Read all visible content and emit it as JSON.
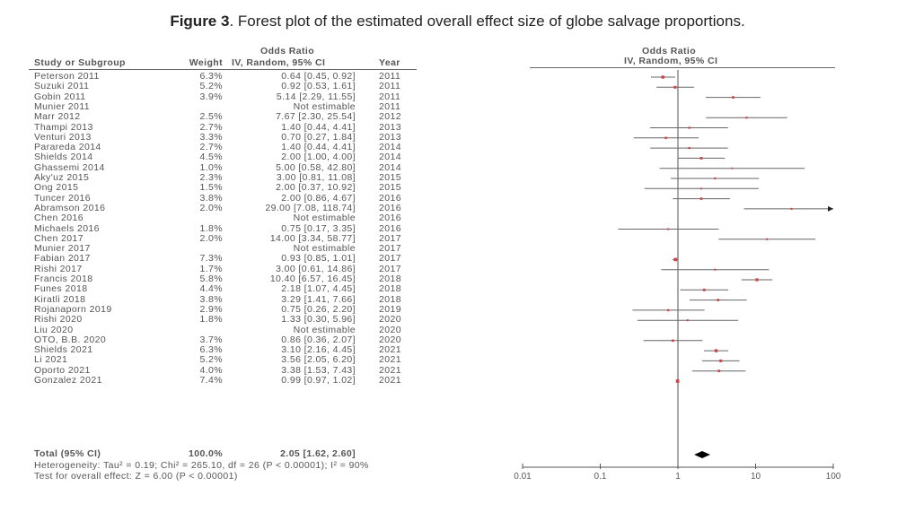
{
  "figure_label": "Figure 3",
  "figure_caption": ". Forest plot of the estimated overall effect size of globe salvage proportions.",
  "chart_data": {
    "type": "forest",
    "title": "Figure 3. Forest plot of the estimated overall effect size of globe salvage proportions.",
    "headers": {
      "study": "Study or Subgroup",
      "weight": "Weight",
      "or_top": "Odds Ratio",
      "or_sub": "IV, Random, 95% CI",
      "year": "Year",
      "plot_top": "Odds Ratio",
      "plot_sub": "IV, Random, 95% CI"
    },
    "xscale": "log",
    "xlim": [
      0.01,
      100
    ],
    "xticks": [
      "0.01",
      "0.1",
      "1",
      "10",
      "100"
    ],
    "studies": [
      {
        "name": "Peterson 2011",
        "weight": "6.3%",
        "ci": "0.64 [0.45, 0.92]",
        "year": "2011",
        "or": 0.64,
        "lo": 0.45,
        "hi": 0.92
      },
      {
        "name": "Suzuki 2011",
        "weight": "5.2%",
        "ci": "0.92 [0.53, 1.61]",
        "year": "2011",
        "or": 0.92,
        "lo": 0.53,
        "hi": 1.61
      },
      {
        "name": "Gobin 2011",
        "weight": "3.9%",
        "ci": "5.14 [2.29, 11.55]",
        "year": "2011",
        "or": 5.14,
        "lo": 2.29,
        "hi": 11.55
      },
      {
        "name": "Munier 2011",
        "weight": "",
        "ci": "Not estimable",
        "year": "2011"
      },
      {
        "name": "Marr 2012",
        "weight": "2.5%",
        "ci": "7.67 [2.30, 25.54]",
        "year": "2012",
        "or": 7.67,
        "lo": 2.3,
        "hi": 25.54
      },
      {
        "name": "Thampi 2013",
        "weight": "2.7%",
        "ci": "1.40 [0.44, 4.41]",
        "year": "2013",
        "or": 1.4,
        "lo": 0.44,
        "hi": 4.41
      },
      {
        "name": "Venturi 2013",
        "weight": "3.3%",
        "ci": "0.70 [0.27, 1.84]",
        "year": "2013",
        "or": 0.7,
        "lo": 0.27,
        "hi": 1.84
      },
      {
        "name": "Parareda 2014",
        "weight": "2.7%",
        "ci": "1.40 [0.44, 4.41]",
        "year": "2014",
        "or": 1.4,
        "lo": 0.44,
        "hi": 4.41
      },
      {
        "name": "Shields 2014",
        "weight": "4.5%",
        "ci": "2.00 [1.00, 4.00]",
        "year": "2014",
        "or": 2.0,
        "lo": 1.0,
        "hi": 4.0
      },
      {
        "name": "Ghassemi 2014",
        "weight": "1.0%",
        "ci": "5.00 [0.58, 42.80]",
        "year": "2014",
        "or": 5.0,
        "lo": 0.58,
        "hi": 42.8
      },
      {
        "name": "Aky'uz 2015",
        "weight": "2.3%",
        "ci": "3.00 [0.81, 11.08]",
        "year": "2015",
        "or": 3.0,
        "lo": 0.81,
        "hi": 11.08
      },
      {
        "name": "Ong 2015",
        "weight": "1.5%",
        "ci": "2.00 [0.37, 10.92]",
        "year": "2015",
        "or": 2.0,
        "lo": 0.37,
        "hi": 10.92
      },
      {
        "name": "Tuncer 2016",
        "weight": "3.8%",
        "ci": "2.00 [0.86, 4.67]",
        "year": "2016",
        "or": 2.0,
        "lo": 0.86,
        "hi": 4.67
      },
      {
        "name": "Abramson 2016",
        "weight": "2.0%",
        "ci": "29.00 [7.08, 118.74]",
        "year": "2016",
        "or": 29.0,
        "lo": 7.08,
        "hi": 118.74
      },
      {
        "name": "Chen 2016",
        "weight": "",
        "ci": "Not estimable",
        "year": "2016"
      },
      {
        "name": "Michaels 2016",
        "weight": "1.8%",
        "ci": "0.75 [0.17, 3.35]",
        "year": "2016",
        "or": 0.75,
        "lo": 0.17,
        "hi": 3.35
      },
      {
        "name": "Chen 2017",
        "weight": "2.0%",
        "ci": "14.00 [3.34, 58.77]",
        "year": "2017",
        "or": 14.0,
        "lo": 3.34,
        "hi": 58.77
      },
      {
        "name": "Munier 2017",
        "weight": "",
        "ci": "Not estimable",
        "year": "2017"
      },
      {
        "name": "Fabian 2017",
        "weight": "7.3%",
        "ci": "0.93 [0.85, 1.01]",
        "year": "2017",
        "or": 0.93,
        "lo": 0.85,
        "hi": 1.01
      },
      {
        "name": "Rishi 2017",
        "weight": "1.7%",
        "ci": "3.00 [0.61, 14.86]",
        "year": "2017",
        "or": 3.0,
        "lo": 0.61,
        "hi": 14.86
      },
      {
        "name": "Francis 2018",
        "weight": "5.8%",
        "ci": "10.40 [6.57, 16.45]",
        "year": "2018",
        "or": 10.4,
        "lo": 6.57,
        "hi": 16.45
      },
      {
        "name": "Funes 2018",
        "weight": "4.4%",
        "ci": "2.18 [1.07, 4.45]",
        "year": "2018",
        "or": 2.18,
        "lo": 1.07,
        "hi": 4.45
      },
      {
        "name": "Kiratli 2018",
        "weight": "3.8%",
        "ci": "3.29 [1.41, 7.66]",
        "year": "2018",
        "or": 3.29,
        "lo": 1.41,
        "hi": 7.66
      },
      {
        "name": "Rojanaporn 2019",
        "weight": "2.9%",
        "ci": "0.75 [0.26, 2.20]",
        "year": "2019",
        "or": 0.75,
        "lo": 0.26,
        "hi": 2.2
      },
      {
        "name": "Rishi 2020",
        "weight": "1.8%",
        "ci": "1.33 [0.30, 5.96]",
        "year": "2020",
        "or": 1.33,
        "lo": 0.3,
        "hi": 5.96
      },
      {
        "name": "Liu 2020",
        "weight": "",
        "ci": "Not estimable",
        "year": "2020"
      },
      {
        "name": "OTO, B.B. 2020",
        "weight": "3.7%",
        "ci": "0.86 [0.36, 2.07]",
        "year": "2020",
        "or": 0.86,
        "lo": 0.36,
        "hi": 2.07
      },
      {
        "name": "Shields 2021",
        "weight": "6.3%",
        "ci": "3.10 [2.16, 4.45]",
        "year": "2021",
        "or": 3.1,
        "lo": 2.16,
        "hi": 4.45
      },
      {
        "name": "Li 2021",
        "weight": "5.2%",
        "ci": "3.56 [2.05, 6.20]",
        "year": "2021",
        "or": 3.56,
        "lo": 2.05,
        "hi": 6.2
      },
      {
        "name": "Oporto 2021",
        "weight": "4.0%",
        "ci": "3.38 [1.53, 7.43]",
        "year": "2021",
        "or": 3.38,
        "lo": 1.53,
        "hi": 7.43
      },
      {
        "name": "Gonzalez 2021",
        "weight": "7.4%",
        "ci": "0.99 [0.97, 1.02]",
        "year": "2021",
        "or": 0.99,
        "lo": 0.97,
        "hi": 1.02
      }
    ],
    "total": {
      "name": "Total (95% CI)",
      "weight": "100.0%",
      "ci": "2.05 [1.62, 2.60]",
      "or": 2.05,
      "lo": 1.62,
      "hi": 2.6
    },
    "heterogeneity": "Heterogeneity: Tau² = 0.19; Chi² = 265.10, df = 26 (P < 0.00001); I² = 90%",
    "overall_test": "Test for overall effect: Z = 6.00 (P < 0.00001)"
  }
}
